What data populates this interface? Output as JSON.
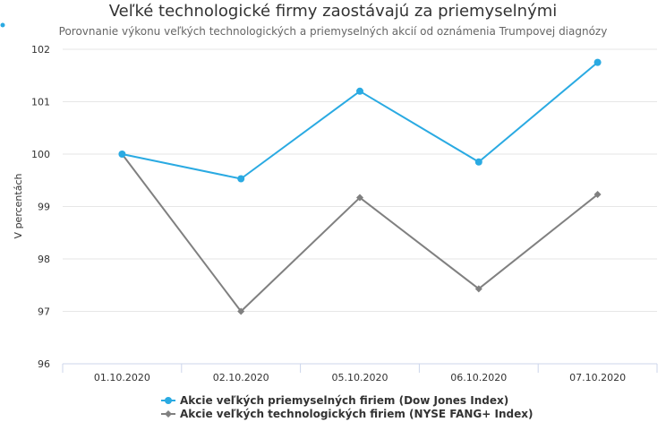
{
  "chart_data": {
    "type": "line",
    "title": "Veľké technologické firmy zaostávajú za priemyselnými",
    "subtitle": "Porovnanie výkonu veľkých technologických a priemyselných akcií od oznámenia Trumpovej diagnózy",
    "ylabel": "V percentách",
    "xlabel": "",
    "categories": [
      "01.10.2020",
      "02.10.2020",
      "05.10.2020",
      "06.10.2020",
      "07.10.2020"
    ],
    "yticks": [
      "96",
      "97",
      "98",
      "99",
      "100",
      "101",
      "102"
    ],
    "ylim": [
      96,
      102
    ],
    "grid": true,
    "legend_position": "bottom-center",
    "series": [
      {
        "name": "Akcie veľkých priemyselných firiem (Dow Jones Index)",
        "values": [
          100,
          99.53,
          101.2,
          99.85,
          101.75
        ],
        "color": "#2aaae2",
        "marker": "circle"
      },
      {
        "name": "Akcie veľkých technologických firiem (NYSE FANG+ Index)",
        "values": [
          100,
          97.0,
          99.17,
          97.43,
          99.23
        ],
        "color": "#808080",
        "marker": "diamond"
      }
    ]
  }
}
